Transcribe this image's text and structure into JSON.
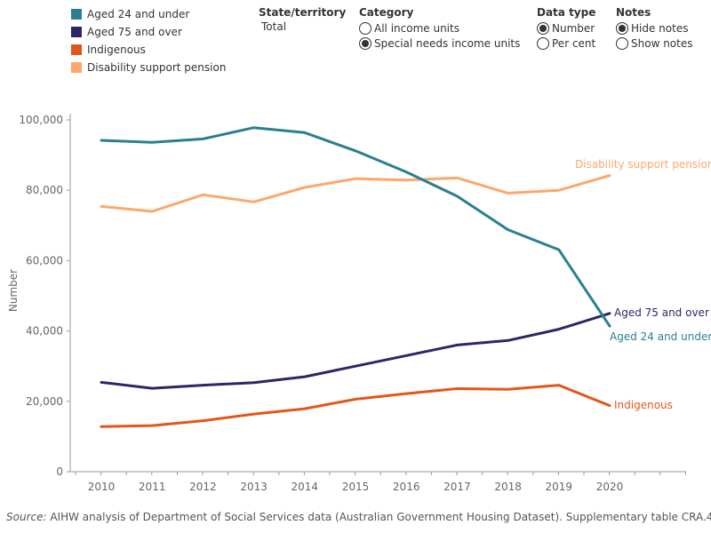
{
  "legend": [
    {
      "label": "Aged 24 and under",
      "color": "#2a7f90"
    },
    {
      "label": "Aged 75 and over",
      "color": "#2e2567"
    },
    {
      "label": "Indigenous",
      "color": "#e2561b"
    },
    {
      "label": "Disability support pension",
      "color": "#fea76a"
    }
  ],
  "filters": {
    "state": {
      "title": "State/territory",
      "value": "Total"
    },
    "category": {
      "title": "Category",
      "options": [
        {
          "label": "All income units",
          "checked": false
        },
        {
          "label": "Special needs income units",
          "checked": true
        }
      ]
    },
    "datatype": {
      "title": "Data type",
      "options": [
        {
          "label": "Number",
          "checked": true
        },
        {
          "label": "Per cent",
          "checked": false
        }
      ]
    },
    "notes": {
      "title": "Notes",
      "options": [
        {
          "label": "Hide notes",
          "checked": true
        },
        {
          "label": "Show notes",
          "checked": false
        }
      ]
    }
  },
  "source": {
    "prefix": "Source:",
    "text": " AIHW analysis of Department of Social Services data (Australian Government Housing Dataset). Supplementary table CRA.4."
  },
  "chart_data": {
    "type": "line",
    "x": [
      "2010",
      "2011",
      "2012",
      "2013",
      "2014",
      "2015",
      "2016",
      "2017",
      "2018",
      "2019",
      "2020"
    ],
    "ylabel": "Number",
    "ylim": [
      0,
      100000
    ],
    "yticks": [
      0,
      20000,
      40000,
      60000,
      80000,
      100000
    ],
    "ytick_labels": [
      "0",
      "20,000",
      "40,000",
      "60,000",
      "80,000",
      "100,000"
    ],
    "grid": false,
    "series": [
      {
        "name": "Aged 24 and under",
        "color": "#2a7f90",
        "label": "Aged 24 and under",
        "values": [
          94200,
          93600,
          94600,
          97800,
          96400,
          91200,
          85200,
          78300,
          68800,
          63100,
          41400
        ]
      },
      {
        "name": "Aged 75 and over",
        "color": "#2e2567",
        "label": "Aged 75 and over",
        "values": [
          25400,
          23700,
          24600,
          25300,
          27000,
          30000,
          33000,
          36000,
          37300,
          40500,
          45000
        ]
      },
      {
        "name": "Indigenous",
        "color": "#e2561b",
        "label": "Indigenous",
        "values": [
          12800,
          13100,
          14500,
          16400,
          17900,
          20600,
          22200,
          23600,
          23400,
          24600,
          18800
        ]
      },
      {
        "name": "Disability support pension",
        "color": "#fea76a",
        "label": "Disability support pension",
        "values": [
          75400,
          74000,
          78700,
          76700,
          80800,
          83300,
          82900,
          83500,
          79200,
          80000,
          84200
        ]
      }
    ]
  }
}
